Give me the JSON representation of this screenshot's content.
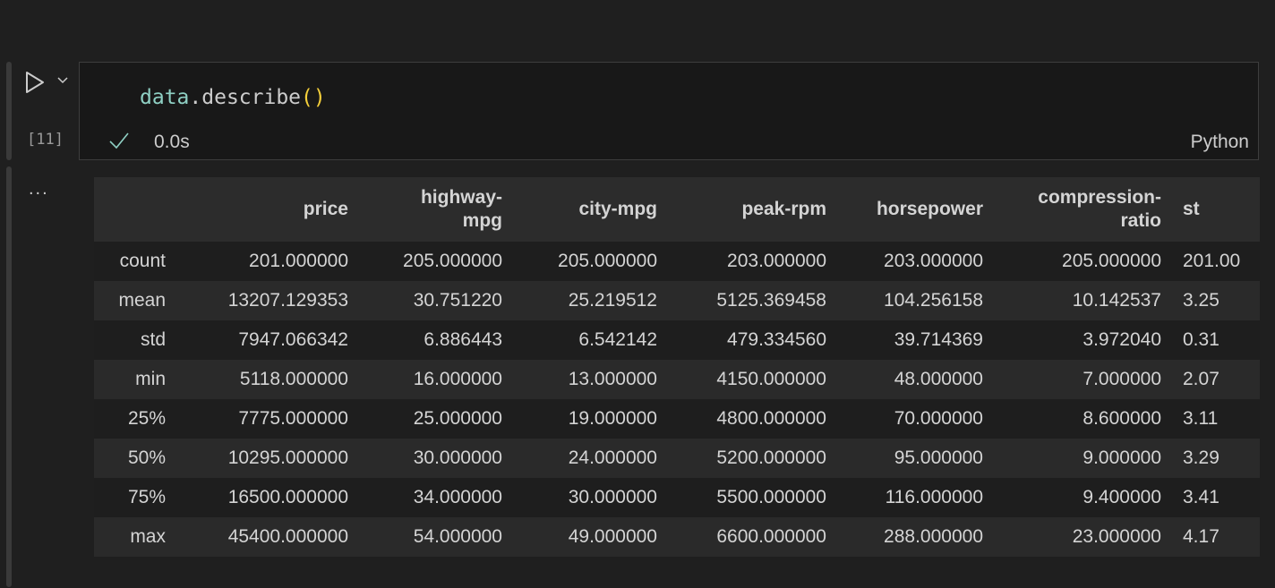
{
  "cell": {
    "code_object": "data",
    "code_dot": ".",
    "code_method": "describe",
    "code_parens": "()",
    "execution_count": "[11]",
    "status_icon": "check-icon",
    "duration": "0.0s",
    "language": "Python",
    "output_menu": "..."
  },
  "colors": {
    "accent_identifier": "#8fd0c4",
    "paren": "#f4cf3a",
    "check": "#8fd0c4"
  },
  "table": {
    "columns": [
      "",
      "price",
      "highway-\nmpg",
      "city-mpg",
      "peak-rpm",
      "horsepower",
      "compression-\nratio",
      "st"
    ],
    "rows": [
      [
        "count",
        "201.000000",
        "205.000000",
        "205.000000",
        "203.000000",
        "203.000000",
        "205.000000",
        "201.00"
      ],
      [
        "mean",
        "13207.129353",
        "30.751220",
        "25.219512",
        "5125.369458",
        "104.256158",
        "10.142537",
        "3.25"
      ],
      [
        "std",
        "7947.066342",
        "6.886443",
        "6.542142",
        "479.334560",
        "39.714369",
        "3.972040",
        "0.31"
      ],
      [
        "min",
        "5118.000000",
        "16.000000",
        "13.000000",
        "4150.000000",
        "48.000000",
        "7.000000",
        "2.07"
      ],
      [
        "25%",
        "7775.000000",
        "25.000000",
        "19.000000",
        "4800.000000",
        "70.000000",
        "8.600000",
        "3.11"
      ],
      [
        "50%",
        "10295.000000",
        "30.000000",
        "24.000000",
        "5200.000000",
        "95.000000",
        "9.000000",
        "3.29"
      ],
      [
        "75%",
        "16500.000000",
        "34.000000",
        "30.000000",
        "5500.000000",
        "116.000000",
        "9.400000",
        "3.41"
      ],
      [
        "max",
        "45400.000000",
        "54.000000",
        "49.000000",
        "6600.000000",
        "288.000000",
        "23.000000",
        "4.17"
      ]
    ]
  }
}
